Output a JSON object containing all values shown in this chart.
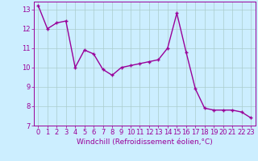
{
  "x": [
    0,
    1,
    2,
    3,
    4,
    5,
    6,
    7,
    8,
    9,
    10,
    11,
    12,
    13,
    14,
    15,
    16,
    17,
    18,
    19,
    20,
    21,
    22,
    23
  ],
  "y": [
    13.2,
    12.0,
    12.3,
    12.4,
    10.0,
    10.9,
    10.7,
    9.9,
    9.6,
    10.0,
    10.1,
    10.2,
    10.3,
    10.4,
    11.0,
    12.8,
    10.8,
    8.9,
    7.9,
    7.8,
    7.8,
    7.8,
    7.7,
    7.4
  ],
  "color": "#990099",
  "bg_color": "#cceeff",
  "grid_color": "#aacccc",
  "xlabel": "Windchill (Refroidissement éolien,°C)",
  "xlim_min": -0.5,
  "xlim_max": 23.5,
  "ylim_min": 7,
  "ylim_max": 13.4,
  "yticks": [
    7,
    8,
    9,
    10,
    11,
    12,
    13
  ],
  "xtick_labels": [
    "0",
    "1",
    "2",
    "3",
    "4",
    "5",
    "6",
    "7",
    "8",
    "9",
    "10",
    "11",
    "12",
    "13",
    "14",
    "15",
    "16",
    "17",
    "18",
    "19",
    "20",
    "21",
    "22",
    "23"
  ],
  "xlabel_fontsize": 6.5,
  "tick_fontsize": 6,
  "line_width": 1.0,
  "marker": "+"
}
